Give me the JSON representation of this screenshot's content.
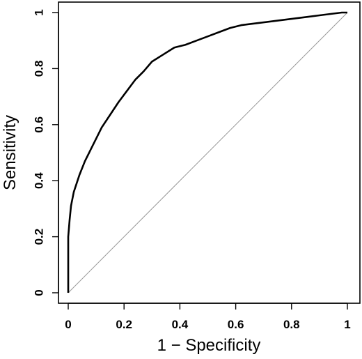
{
  "chart_data": {
    "type": "line",
    "title": "",
    "xlabel": "1 − Specificity",
    "ylabel": "Sensitivity",
    "xlim": [
      0,
      1
    ],
    "ylim": [
      0,
      1
    ],
    "x_ticks": [
      0,
      0.2,
      0.4,
      0.6,
      0.8,
      1
    ],
    "y_ticks": [
      0,
      0.2,
      0.4,
      0.6,
      0.8,
      1
    ],
    "x_tick_labels": [
      "0",
      "0.2",
      "0.4",
      "0.6",
      "0.8",
      "1"
    ],
    "y_tick_labels": [
      "0",
      "0.2",
      "0.4",
      "0.6",
      "0.8",
      "1"
    ],
    "grid": false,
    "series": [
      {
        "x": [
          0,
          0,
          0.005,
          0.01,
          0.02,
          0.04,
          0.06,
          0.08,
          0.1,
          0.12,
          0.15,
          0.18,
          0.21,
          0.24,
          0.27,
          0.3,
          0.34,
          0.38,
          0.42,
          0.46,
          0.5,
          0.54,
          0.58,
          0.62,
          0.66,
          0.7,
          0.74,
          0.78,
          0.82,
          0.86,
          0.9,
          0.94,
          0.98,
          1.0
        ],
        "y": [
          0,
          0.2,
          0.26,
          0.31,
          0.36,
          0.42,
          0.47,
          0.51,
          0.55,
          0.59,
          0.635,
          0.68,
          0.72,
          0.76,
          0.79,
          0.825,
          0.85,
          0.875,
          0.885,
          0.9,
          0.915,
          0.93,
          0.945,
          0.955,
          0.96,
          0.965,
          0.97,
          0.975,
          0.98,
          0.985,
          0.99,
          0.995,
          1.0,
          1.0
        ],
        "color": "#000000"
      }
    ],
    "reference_line": {
      "x": [
        0,
        1
      ],
      "y": [
        0,
        1
      ],
      "color": "#999999"
    }
  }
}
